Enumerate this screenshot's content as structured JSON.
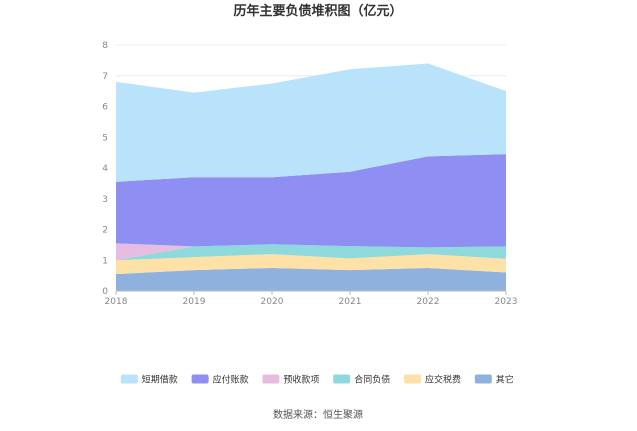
{
  "chart_data": {
    "type": "area",
    "stacked": true,
    "title": "历年主要负债堆积图（亿元）",
    "categories": [
      "2018",
      "2019",
      "2020",
      "2021",
      "2022",
      "2023"
    ],
    "ylim": [
      0,
      8
    ],
    "yticks": [
      "0",
      "1",
      "2",
      "3",
      "4",
      "5",
      "6",
      "7",
      "8"
    ],
    "grid": true,
    "legend_position": "bottom",
    "series": [
      {
        "name": "其它",
        "color": "#8fb1dd",
        "values": [
          0.55,
          0.68,
          0.75,
          0.68,
          0.75,
          0.6
        ]
      },
      {
        "name": "应交税费",
        "color": "#fde1a6",
        "values": [
          0.45,
          0.42,
          0.45,
          0.38,
          0.45,
          0.45
        ]
      },
      {
        "name": "合同负债",
        "color": "#8dd9dc",
        "values": [
          0.0,
          0.35,
          0.32,
          0.4,
          0.22,
          0.4
        ]
      },
      {
        "name": "预收款项",
        "color": "#e6bde0",
        "values": [
          0.55,
          0.0,
          0.0,
          0.0,
          0.0,
          0.0
        ]
      },
      {
        "name": "应付账款",
        "color": "#8f8ff3",
        "values": [
          2.0,
          2.25,
          2.18,
          2.42,
          2.96,
          3.0
        ]
      },
      {
        "name": "短期借款",
        "color": "#b9e2fb",
        "values": [
          3.25,
          2.75,
          3.05,
          3.33,
          3.02,
          2.05
        ]
      }
    ],
    "legend_order": [
      "短期借款",
      "应付账款",
      "预收款项",
      "合同负债",
      "应交税费",
      "其它"
    ]
  },
  "footer": {
    "source": "数据来源：恒生聚源"
  }
}
